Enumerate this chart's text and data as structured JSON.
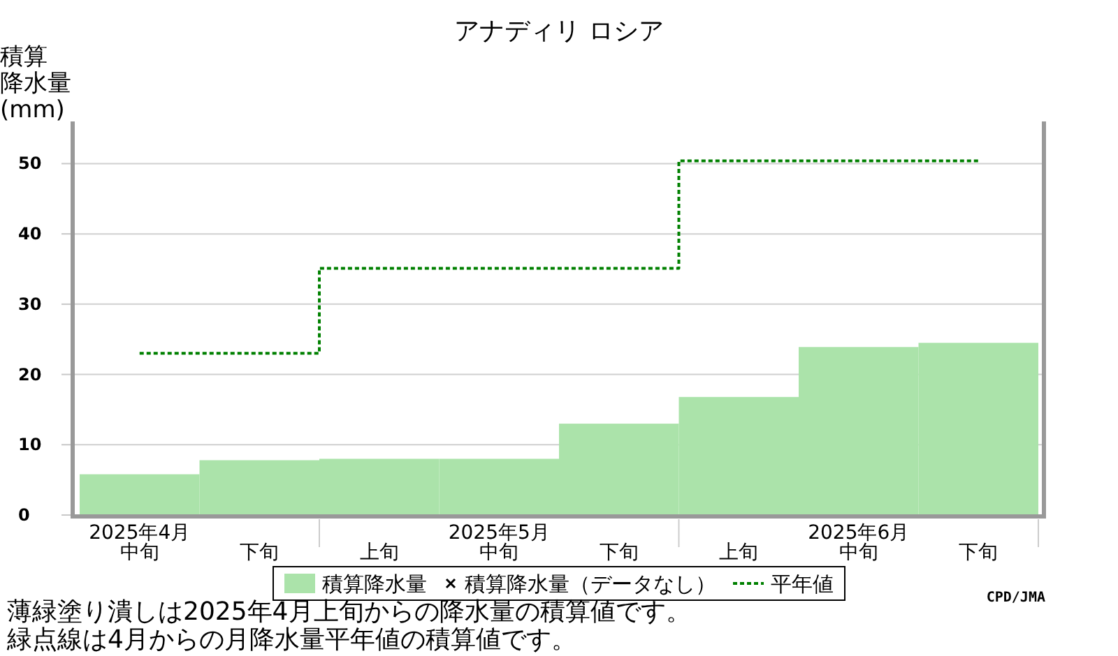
{
  "chart_data": {
    "type": "bar",
    "title": "アナディリ ロシア",
    "ylabel": "積算降水量(mm)",
    "categories": [
      "2025年4月中旬",
      "下旬",
      "上旬",
      "2025年5月中旬",
      "下旬",
      "上旬",
      "2025年6月中旬",
      "下旬"
    ],
    "series": [
      {
        "name": "積算降水量",
        "color": "#abe3aa",
        "values": [
          5.8,
          7.8,
          8.0,
          8.0,
          13.0,
          16.8,
          23.9,
          24.5
        ]
      },
      {
        "name": "積算降水量（データなし）",
        "type": "scatter",
        "marker": "cross",
        "color": "#000000",
        "values": [
          null,
          null,
          null,
          null,
          null,
          null,
          null,
          null
        ]
      },
      {
        "name": "平年値",
        "type": "step",
        "color": "#008000",
        "line_style": "dotted",
        "values": [
          23.0,
          23.0,
          35.1,
          35.1,
          35.1,
          50.4,
          50.4,
          50.4
        ]
      }
    ],
    "ylim": [
      0,
      56
    ],
    "yticks": [
      0,
      10,
      20,
      30,
      40,
      50
    ],
    "grid": "y",
    "legend": "bottom",
    "annotations": [
      "CPD/JMA",
      "薄緑塗り潰しは2025年4月上旬からの降水量の積算値です。",
      "緑点線は4月からの月降水量平年値の積算値です。"
    ]
  }
}
